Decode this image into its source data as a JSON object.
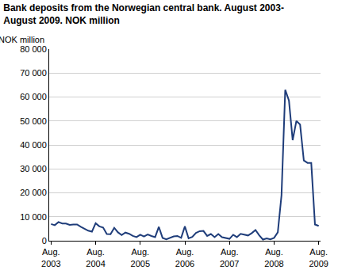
{
  "chart_data": {
    "type": "line",
    "title": "Bank deposits from the Norwegian central bank. August 2003-\nAugust 2009. NOK million",
    "y_label": "NOK million",
    "categories": [
      "Aug. 2003",
      null,
      null,
      null,
      null,
      null,
      null,
      null,
      null,
      null,
      null,
      null,
      "Aug. 2004",
      null,
      null,
      null,
      null,
      null,
      null,
      null,
      null,
      null,
      null,
      null,
      "Aug. 2005",
      null,
      null,
      null,
      null,
      null,
      null,
      null,
      null,
      null,
      null,
      null,
      "Aug. 2006",
      null,
      null,
      null,
      null,
      null,
      null,
      null,
      null,
      null,
      null,
      null,
      "Aug. 2007",
      null,
      null,
      null,
      null,
      null,
      null,
      null,
      null,
      null,
      null,
      null,
      "Aug. 2008",
      null,
      null,
      null,
      null,
      null,
      null,
      null,
      null,
      null,
      null,
      null,
      "Aug. 2009"
    ],
    "values": [
      7000,
      6500,
      7800,
      7200,
      7200,
      6600,
      6800,
      6800,
      5800,
      5000,
      4200,
      3800,
      7300,
      6000,
      5500,
      2800,
      2700,
      5400,
      3500,
      2400,
      3400,
      2900,
      2000,
      1500,
      2500,
      1800,
      2600,
      2000,
      1500,
      5800,
      1200,
      600,
      1200,
      1800,
      2000,
      1200,
      6000,
      1000,
      1600,
      3300,
      4000,
      4100,
      2000,
      2800,
      1500,
      2800,
      1500,
      1200,
      800,
      2500,
      1500,
      2900,
      2500,
      2200,
      3200,
      4500,
      2300,
      500,
      1000,
      600,
      1200,
      3500,
      19000,
      63000,
      58500,
      42000,
      50000,
      48500,
      33500,
      32500,
      32500,
      6800,
      6200
    ],
    "color": "#1f3d7a",
    "ylim": [
      0,
      80000
    ],
    "yticks": [
      0,
      {
        "value": 10000,
        "label": "10 000"
      },
      {
        "value": 20000,
        "label": "20 000"
      },
      {
        "value": 30000,
        "label": "30 000"
      },
      {
        "value": 40000,
        "label": "40 000"
      },
      {
        "value": 50000,
        "label": "50 000"
      },
      {
        "value": 60000,
        "label": "60 000"
      },
      {
        "value": 70000,
        "label": "70 000"
      },
      {
        "value": 80000,
        "label": "80 000"
      }
    ],
    "grid": true
  }
}
